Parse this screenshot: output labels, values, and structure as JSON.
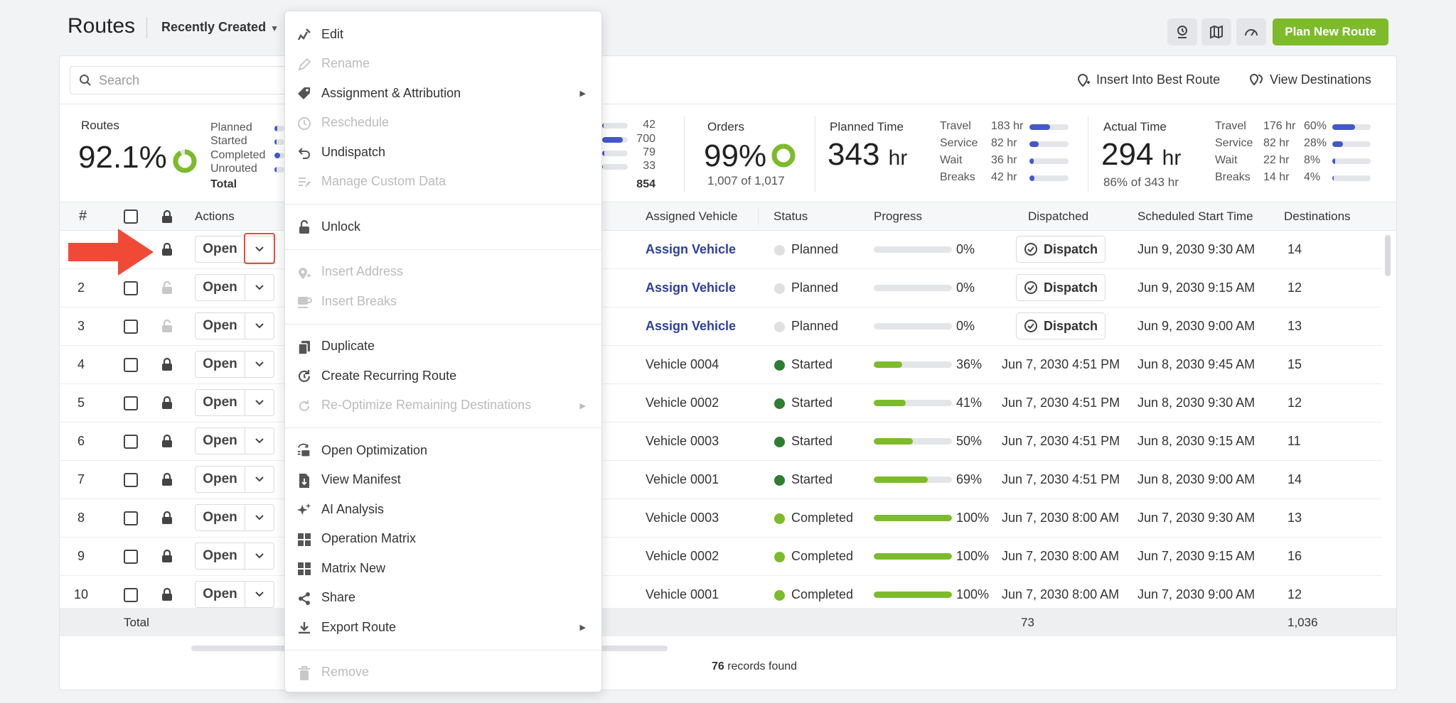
{
  "header": {
    "title": "Routes",
    "sort_label": "Recently Created",
    "plan_button": "Plan New Route"
  },
  "toolbar": {
    "search_placeholder": "Search",
    "insert_best": "Insert Into Best Route",
    "view_destinations": "View Destinations"
  },
  "summary": {
    "routes": {
      "label": "Routes",
      "percent": "92.1%",
      "breakdown": [
        {
          "label": "Planned",
          "fill": 0.05
        },
        {
          "label": "Started",
          "fill": 0.82
        },
        {
          "label": "Completed",
          "fill": 0.09
        },
        {
          "label": "Unrouted",
          "fill": 0.04
        }
      ],
      "total_label": "Total",
      "counts": [
        "42",
        "700",
        "79",
        "33"
      ],
      "total": "854"
    },
    "orders": {
      "label": "Orders",
      "percent": "99%",
      "sub": "1,007 of 1,017"
    },
    "planned_time": {
      "label": "Planned Time",
      "value": "343",
      "unit": "hr",
      "rows": [
        {
          "label": "Travel",
          "value": "183 hr",
          "fill": 0.53
        },
        {
          "label": "Service",
          "value": "82 hr",
          "fill": 0.24
        },
        {
          "label": "Wait",
          "value": "36 hr",
          "fill": 0.1
        },
        {
          "label": "Breaks",
          "value": "42 hr",
          "fill": 0.12
        }
      ]
    },
    "actual_time": {
      "label": "Actual Time",
      "value": "294",
      "unit": "hr",
      "sub": "86% of 343 hr",
      "rows": [
        {
          "label": "Travel",
          "value": "176 hr",
          "pct": "60%",
          "fill": 0.6
        },
        {
          "label": "Service",
          "value": "82 hr",
          "pct": "28%",
          "fill": 0.28
        },
        {
          "label": "Wait",
          "value": "22 hr",
          "pct": "8%",
          "fill": 0.08
        },
        {
          "label": "Breaks",
          "value": "14 hr",
          "pct": "4%",
          "fill": 0.04
        }
      ]
    }
  },
  "table": {
    "headers": {
      "num": "#",
      "actions": "Actions",
      "vehicle": "Assigned Vehicle",
      "status": "Status",
      "progress": "Progress",
      "dispatched": "Dispatched",
      "start": "Scheduled Start Time",
      "destinations": "Destinations"
    },
    "open_label": "Open",
    "dispatch_label": "Dispatch",
    "rows": [
      {
        "num": "",
        "locked": true,
        "vehicle": "Assign Vehicle",
        "assign": true,
        "status": "Planned",
        "color": "#e0e0e0",
        "progress": 0,
        "progress_text": "0%",
        "dispatched": "",
        "dispatch_btn": true,
        "start": "Jun 9, 2030 9:30 AM",
        "dest": "14"
      },
      {
        "num": "2",
        "locked": false,
        "vehicle": "Assign Vehicle",
        "assign": true,
        "status": "Planned",
        "color": "#e0e0e0",
        "progress": 0,
        "progress_text": "0%",
        "dispatched": "",
        "dispatch_btn": true,
        "start": "Jun 9, 2030 9:15 AM",
        "dest": "12"
      },
      {
        "num": "3",
        "locked": false,
        "vehicle": "Assign Vehicle",
        "assign": true,
        "status": "Planned",
        "color": "#e0e0e0",
        "progress": 0,
        "progress_text": "0%",
        "dispatched": "",
        "dispatch_btn": true,
        "start": "Jun 9, 2030 9:00 AM",
        "dest": "13"
      },
      {
        "num": "4",
        "locked": true,
        "vehicle": "Vehicle 0004",
        "assign": false,
        "status": "Started",
        "color": "#2e7d32",
        "progress": 0.36,
        "progress_text": "36%",
        "dispatched": "Jun 7, 2030 4:51 PM",
        "dispatch_btn": false,
        "start": "Jun 8, 2030 9:45 AM",
        "dest": "15"
      },
      {
        "num": "5",
        "locked": true,
        "vehicle": "Vehicle 0002",
        "assign": false,
        "status": "Started",
        "color": "#2e7d32",
        "progress": 0.41,
        "progress_text": "41%",
        "dispatched": "Jun 7, 2030 4:51 PM",
        "dispatch_btn": false,
        "start": "Jun 8, 2030 9:30 AM",
        "dest": "12"
      },
      {
        "num": "6",
        "locked": true,
        "vehicle": "Vehicle 0003",
        "assign": false,
        "status": "Started",
        "color": "#2e7d32",
        "progress": 0.5,
        "progress_text": "50%",
        "dispatched": "Jun 7, 2030 4:51 PM",
        "dispatch_btn": false,
        "start": "Jun 8, 2030 9:15 AM",
        "dest": "11"
      },
      {
        "num": "7",
        "locked": true,
        "vehicle": "Vehicle 0001",
        "assign": false,
        "status": "Started",
        "color": "#2e7d32",
        "progress": 0.69,
        "progress_text": "69%",
        "dispatched": "Jun 7, 2030 4:51 PM",
        "dispatch_btn": false,
        "start": "Jun 8, 2030 9:00 AM",
        "dest": "14"
      },
      {
        "num": "8",
        "locked": true,
        "vehicle": "Vehicle 0003",
        "assign": false,
        "status": "Completed",
        "color": "#7dbb2b",
        "progress": 1,
        "progress_text": "100%",
        "dispatched": "Jun 7, 2030 8:00 AM",
        "dispatch_btn": false,
        "start": "Jun 7, 2030 9:30 AM",
        "dest": "13"
      },
      {
        "num": "9",
        "locked": true,
        "vehicle": "Vehicle 0002",
        "assign": false,
        "status": "Completed",
        "color": "#7dbb2b",
        "progress": 1,
        "progress_text": "100%",
        "dispatched": "Jun 7, 2030 8:00 AM",
        "dispatch_btn": false,
        "start": "Jun 7, 2030 9:15 AM",
        "dest": "16"
      },
      {
        "num": "10",
        "locked": true,
        "vehicle": "Vehicle 0001",
        "assign": false,
        "status": "Completed",
        "color": "#7dbb2b",
        "progress": 1,
        "progress_text": "100%",
        "dispatched": "Jun 7, 2030 8:00 AM",
        "dispatch_btn": false,
        "start": "Jun 7, 2030 9:00 AM",
        "dest": "12"
      }
    ],
    "footer": {
      "label": "Total",
      "dispatched_total": "73",
      "destinations_total": "1,036"
    },
    "records_count": "76",
    "records_label": "records found"
  },
  "menu": {
    "items": [
      {
        "label": "Edit",
        "icon": "edit-route-icon",
        "disabled": false,
        "submenu": false
      },
      {
        "label": "Rename",
        "icon": "pencil-icon",
        "disabled": true,
        "submenu": false
      },
      {
        "label": "Assignment & Attribution",
        "icon": "tag-icon",
        "disabled": false,
        "submenu": true
      },
      {
        "label": "Reschedule",
        "icon": "clock-icon",
        "disabled": true,
        "submenu": false
      },
      {
        "label": "Undispatch",
        "icon": "undo-icon",
        "disabled": false,
        "submenu": false
      },
      {
        "label": "Manage Custom Data",
        "icon": "custom-data-icon",
        "disabled": true,
        "submenu": false
      },
      {
        "sep": true
      },
      {
        "label": "Unlock",
        "icon": "unlock-icon",
        "disabled": false,
        "submenu": false
      },
      {
        "sep": true
      },
      {
        "label": "Insert Address",
        "icon": "insert-address-icon",
        "disabled": true,
        "submenu": false
      },
      {
        "label": "Insert Breaks",
        "icon": "coffee-icon",
        "disabled": true,
        "submenu": false
      },
      {
        "sep": true
      },
      {
        "label": "Duplicate",
        "icon": "duplicate-icon",
        "disabled": false,
        "submenu": false
      },
      {
        "label": "Create Recurring Route",
        "icon": "recurring-icon",
        "disabled": false,
        "submenu": false
      },
      {
        "label": "Re-Optimize Remaining Destinations",
        "icon": "reoptimize-icon",
        "disabled": true,
        "submenu": true
      },
      {
        "sep": true
      },
      {
        "label": "Open Optimization",
        "icon": "optimization-icon",
        "disabled": false,
        "submenu": false
      },
      {
        "label": "View Manifest",
        "icon": "manifest-icon",
        "disabled": false,
        "submenu": false
      },
      {
        "label": "AI Analysis",
        "icon": "sparkle-icon",
        "disabled": false,
        "submenu": false
      },
      {
        "label": "Operation Matrix",
        "icon": "grid-icon",
        "disabled": false,
        "submenu": false
      },
      {
        "label": "Matrix New",
        "icon": "grid-icon",
        "disabled": false,
        "submenu": false
      },
      {
        "label": "Share",
        "icon": "share-icon",
        "disabled": false,
        "submenu": false
      },
      {
        "label": "Export Route",
        "icon": "download-icon",
        "disabled": false,
        "submenu": true
      },
      {
        "sep": true
      },
      {
        "label": "Remove",
        "icon": "trash-icon",
        "disabled": true,
        "submenu": false
      }
    ]
  }
}
